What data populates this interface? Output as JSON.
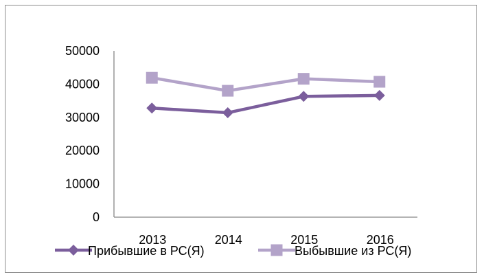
{
  "chart_data": {
    "type": "line",
    "title": "",
    "xlabel": "",
    "ylabel": "",
    "categories": [
      "2013",
      "2014",
      "2015",
      "2016"
    ],
    "ylim": [
      0,
      50000
    ],
    "yticks": [
      "0",
      "10000",
      "20000",
      "30000",
      "40000",
      "50000"
    ],
    "grid": false,
    "legend_position": "bottom",
    "series": [
      {
        "name": "Прибывшие в РС(Я)",
        "values": [
          32800,
          31400,
          36300,
          36600
        ],
        "color": "#7b5e9c",
        "marker": "diamond"
      },
      {
        "name": "Выбывшие из РС(Я)",
        "values": [
          41900,
          38000,
          41600,
          40700
        ],
        "color": "#b3a3c9",
        "marker": "square"
      }
    ]
  }
}
